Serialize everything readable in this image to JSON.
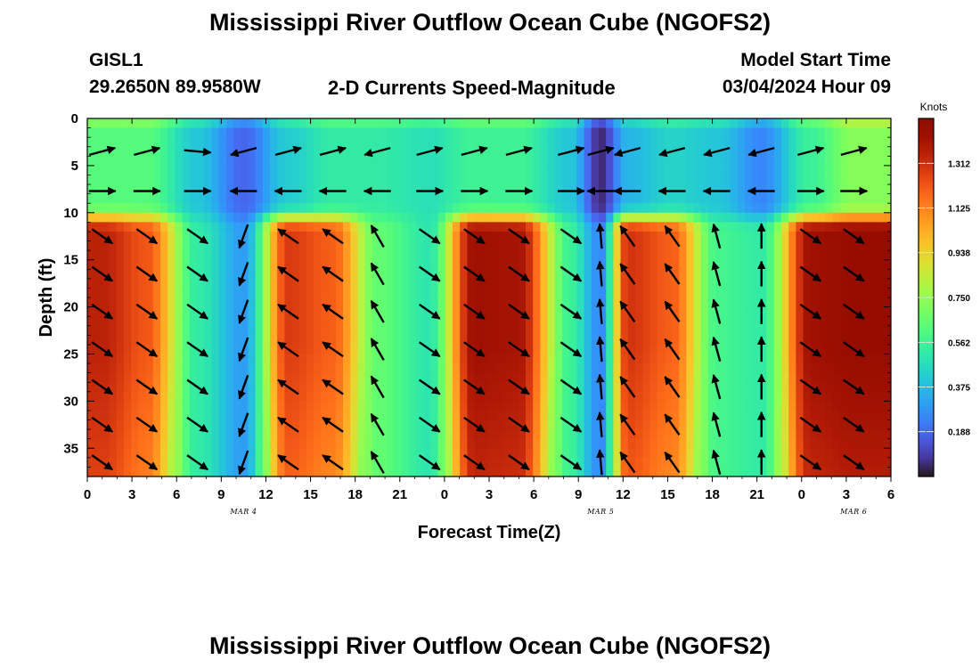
{
  "header": {
    "title": "Mississippi River Outflow Ocean Cube (NGOFS2)",
    "station": "GISL1",
    "coords": "29.2650N  89.9580W",
    "product": "2-D Currents Speed-Magnitude",
    "model_start_label": "Model Start Time",
    "model_start_value": "03/04/2024 Hour 09"
  },
  "footer": {
    "title_repeat": "Mississippi River Outflow Ocean Cube (NGOFS2)"
  },
  "chart_data": {
    "type": "heatmap",
    "xlabel": "Forecast Time(Z)",
    "ylabel": "Depth (ft)",
    "x_tick_labels": [
      "0",
      "3",
      "6",
      "9",
      "12",
      "15",
      "18",
      "21",
      "0",
      "3",
      "6",
      "9",
      "12",
      "15",
      "18",
      "21",
      "0",
      "3",
      "6"
    ],
    "x_range_hours": [
      0,
      54
    ],
    "date_labels": [
      {
        "label": "MAR 4",
        "at_hour": 10.5
      },
      {
        "label": "MAR 5",
        "at_hour": 34.5
      },
      {
        "label": "MAR 6",
        "at_hour": 51.5
      }
    ],
    "y_ticks": [
      0,
      5,
      10,
      15,
      20,
      25,
      30,
      35
    ],
    "ylim": [
      0,
      38
    ],
    "y_inverted": true,
    "colorbar": {
      "unit": "Knots",
      "range": [
        0,
        1.5
      ],
      "tick_labels": [
        "1.312",
        "1.125",
        "0.938",
        "0.750",
        "0.562",
        "0.375",
        "0.188"
      ],
      "colormap": "turbo"
    },
    "columns_hours": [
      1,
      4,
      7.4,
      10.5,
      13.5,
      16.5,
      19.5,
      23,
      26,
      29,
      32.5,
      34.5,
      36.3,
      39.3,
      42.3,
      45.3,
      48.6,
      51.5
    ],
    "profiles": {
      "upper_layer": [
        0.62,
        0.62,
        0.4,
        0.18,
        0.42,
        0.52,
        0.52,
        0.48,
        0.56,
        0.56,
        0.4,
        0.05,
        0.36,
        0.44,
        0.4,
        0.25,
        0.55,
        0.72
      ],
      "lower_layer": [
        1.35,
        1.22,
        0.52,
        0.3,
        1.28,
        1.2,
        0.65,
        0.5,
        1.42,
        1.4,
        0.55,
        0.25,
        1.3,
        1.2,
        0.58,
        0.52,
        1.42,
        1.45
      ]
    },
    "vector_depths_ft": [
      3.5,
      7.7,
      12.5,
      16.5,
      20.5,
      24.5,
      28.5,
      32.5,
      36.5
    ],
    "vectors_upper_deg": [
      15,
      15,
      -5,
      195,
      15,
      15,
      195,
      15,
      15,
      15,
      15,
      15,
      195,
      195,
      195,
      195,
      15,
      15
    ],
    "vectors_mid_deg": [
      0,
      0,
      0,
      180,
      180,
      180,
      180,
      0,
      0,
      0,
      0,
      180,
      180,
      180,
      180,
      180,
      0,
      0
    ],
    "vectors_lower_deg": [
      -35,
      -35,
      -35,
      250,
      145,
      145,
      120,
      -35,
      -35,
      -35,
      -35,
      95,
      125,
      125,
      105,
      90,
      -35,
      -35
    ]
  }
}
